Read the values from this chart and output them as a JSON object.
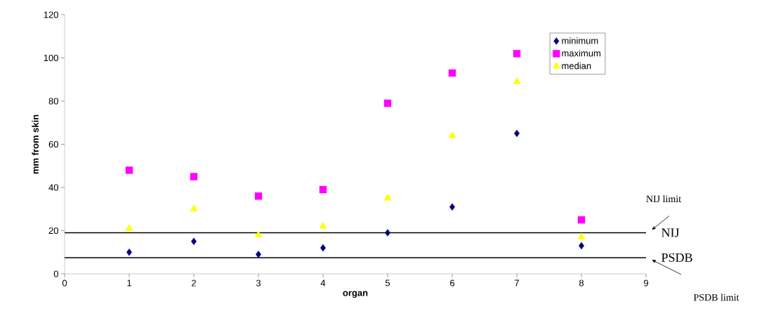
{
  "chart_data": {
    "type": "scatter",
    "xlabel": "organ",
    "ylabel": "mm from skin",
    "x": [
      1,
      2,
      3,
      4,
      5,
      6,
      7,
      8
    ],
    "series": [
      {
        "name": "minimum",
        "color": "#000080",
        "marker": "diamond",
        "values": [
          10,
          15,
          9,
          12,
          19,
          31,
          65,
          13
        ]
      },
      {
        "name": "maximum",
        "color": "#ff00ff",
        "marker": "square",
        "values": [
          48,
          45,
          36,
          39,
          79,
          93,
          102,
          25
        ]
      },
      {
        "name": "median",
        "color": "#ffff00",
        "marker": "triangle",
        "values": [
          21,
          30,
          18,
          22,
          35,
          64,
          89,
          17
        ]
      }
    ],
    "xlim": [
      0,
      9
    ],
    "xticks": [
      0,
      1,
      2,
      3,
      4,
      5,
      6,
      7,
      8,
      9
    ],
    "ylim": [
      0,
      120
    ],
    "yticks": [
      0,
      20,
      40,
      60,
      80,
      100,
      120
    ],
    "ref_lines": [
      {
        "axis": "y",
        "value": 19,
        "label": "NIJ",
        "color": "#000000"
      },
      {
        "axis": "y",
        "value": 7.5,
        "label": "PSDB",
        "color": "#000000"
      }
    ],
    "annotations": [
      "NIJ limit",
      "PSDB limit"
    ],
    "legend": "top right",
    "grid": false
  }
}
